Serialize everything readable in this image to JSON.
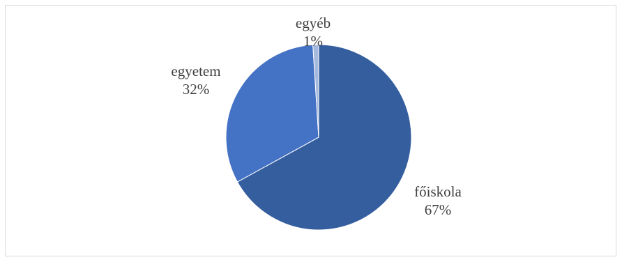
{
  "chart_data": {
    "type": "pie",
    "title": "",
    "categories": [
      "főiskola",
      "egyetem",
      "egyéb"
    ],
    "values": [
      67,
      32,
      1
    ],
    "labels": [
      "67%",
      "32%",
      "1%"
    ],
    "colors": [
      "#355e9f",
      "#4472c4",
      "#a5b8de"
    ],
    "start_angle_deg": 0,
    "direction": "clockwise"
  }
}
